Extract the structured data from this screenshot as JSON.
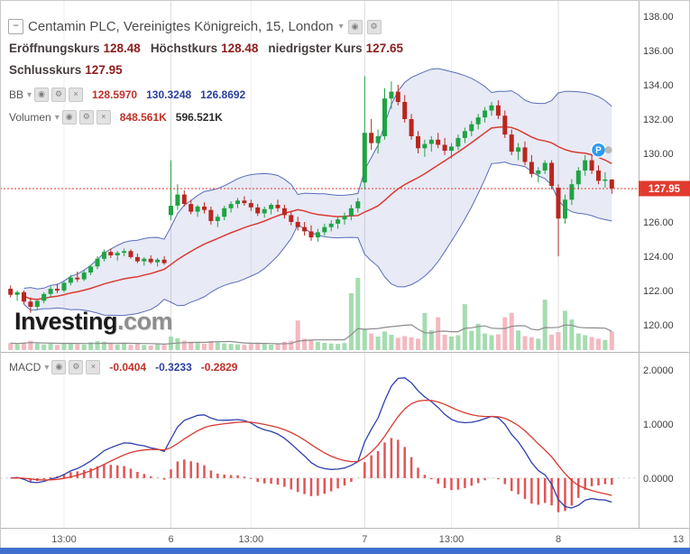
{
  "header": {
    "title": "Centamin PLC, Vereinigtes Königreich, 15, London",
    "open_label": "Eröffnungskurs",
    "open": "128.48",
    "high_label": "Höchstkurs",
    "high": "128.48",
    "low_label": "niedrigster Kurs",
    "low": "127.65",
    "close_label": "Schlusskurs",
    "close": "127.95"
  },
  "indicators_legend": {
    "bb": {
      "label": "BB",
      "v1": "128.5970",
      "v2": "130.3248",
      "v3": "126.8692"
    },
    "volume": {
      "label": "Volumen",
      "v1": "848.561K",
      "v2": "596.521K"
    },
    "macd": {
      "label": "MACD",
      "v1": "-0.0404",
      "v2": "-0.3233",
      "v3": "-0.2829"
    }
  },
  "icons": {
    "collapse": "−",
    "caret": "▾",
    "eye": "◉",
    "gear": "⚙",
    "close": "×"
  },
  "watermark": {
    "brand": "Investing",
    "suffix": ".com"
  },
  "colors": {
    "up": "#1fa343",
    "down": "#b7271e",
    "vol_up": "#a5dcb0",
    "vol_down": "#f3b9c0",
    "vol_ma": "#8c8c8c",
    "band_fill": "rgba(92,106,188,0.14)",
    "band_line": "#3d55ad",
    "basis": "#d93a30",
    "macd_line": "#2d3fb0",
    "signal_line": "#d93a30",
    "hist": "#e05555",
    "price_line": "#e23a2e",
    "tag_bg": "#e23a2e",
    "tag_text": "#ffffff",
    "marker_bg": "#2e9bf0",
    "marker_dot": "#b8b8b8"
  },
  "chart_data": {
    "type": "candlestick",
    "title": "Centamin PLC, Vereinigtes Königreich, 15, London",
    "price_axis": {
      "ticks": [
        138,
        136,
        134,
        132,
        130,
        128,
        126,
        124,
        122,
        120
      ],
      "ylim": [
        118.42,
        138.95
      ]
    },
    "macd_axis": {
      "ticks": [
        2,
        1,
        0
      ],
      "ylim": [
        -0.92,
        2.3
      ]
    },
    "last_price": 127.95,
    "time_ticks": [
      {
        "label": "13:00",
        "i": 8
      },
      {
        "label": "6",
        "i": 24
      },
      {
        "label": "13:00",
        "i": 36
      },
      {
        "label": "7",
        "i": 53
      },
      {
        "label": "13:00",
        "i": 66
      },
      {
        "label": "8",
        "i": 82
      },
      {
        "label": "13",
        "i": 101
      }
    ],
    "day_break_indices": [
      24,
      53,
      82
    ],
    "indicators": {
      "bb": {
        "period": 20,
        "stddev": 2
      },
      "volume_ma": {
        "period": 10
      },
      "macd": {
        "fast": 12,
        "slow": 26,
        "signal": 9
      }
    },
    "markers": [
      {
        "type": "position",
        "label": "P",
        "i": 88,
        "price": 130.2
      },
      {
        "type": "dot",
        "i": 89.5,
        "price": 130.2
      }
    ],
    "candles": [
      [
        122.1,
        122.3,
        121.6,
        121.75
      ],
      [
        121.75,
        122.0,
        121.4,
        121.9
      ],
      [
        121.9,
        122.0,
        121.2,
        121.35
      ],
      [
        121.35,
        121.6,
        120.7,
        121.05
      ],
      [
        121.05,
        121.5,
        120.85,
        121.4
      ],
      [
        121.4,
        121.9,
        121.25,
        121.8
      ],
      [
        121.8,
        122.25,
        121.6,
        122.1
      ],
      [
        122.1,
        122.4,
        121.85,
        122.0
      ],
      [
        122.0,
        122.55,
        121.9,
        122.45
      ],
      [
        122.45,
        122.9,
        122.3,
        122.75
      ],
      [
        122.75,
        123.1,
        122.5,
        122.65
      ],
      [
        122.65,
        123.2,
        122.55,
        123.05
      ],
      [
        123.05,
        123.5,
        122.9,
        123.4
      ],
      [
        123.4,
        124.0,
        123.25,
        123.85
      ],
      [
        123.85,
        124.4,
        123.7,
        124.25
      ],
      [
        124.25,
        124.45,
        123.9,
        124.05
      ],
      [
        124.05,
        124.3,
        123.75,
        124.2
      ],
      [
        124.2,
        124.45,
        124.0,
        124.3
      ],
      [
        124.3,
        124.4,
        123.85,
        123.95
      ],
      [
        123.95,
        124.15,
        123.6,
        123.7
      ],
      [
        123.7,
        123.95,
        123.45,
        123.85
      ],
      [
        123.85,
        124.05,
        123.55,
        123.65
      ],
      [
        123.65,
        123.9,
        123.4,
        123.8
      ],
      [
        123.8,
        124.0,
        123.5,
        123.6
      ],
      [
        126.4,
        129.6,
        126.1,
        126.95
      ],
      [
        126.95,
        128.2,
        126.7,
        127.6
      ],
      [
        127.6,
        127.85,
        126.9,
        127.05
      ],
      [
        127.05,
        127.3,
        126.45,
        126.6
      ],
      [
        126.6,
        127.0,
        126.3,
        126.9
      ],
      [
        126.9,
        127.15,
        126.5,
        126.7
      ],
      [
        126.7,
        126.9,
        125.85,
        126.05
      ],
      [
        126.05,
        126.45,
        125.7,
        126.3
      ],
      [
        126.3,
        126.95,
        126.1,
        126.8
      ],
      [
        126.8,
        127.2,
        126.55,
        127.05
      ],
      [
        127.05,
        127.4,
        126.8,
        127.25
      ],
      [
        127.25,
        127.5,
        126.95,
        127.1
      ],
      [
        127.1,
        127.3,
        126.65,
        126.85
      ],
      [
        126.85,
        127.05,
        126.35,
        126.5
      ],
      [
        126.5,
        126.9,
        126.25,
        126.75
      ],
      [
        126.75,
        127.1,
        126.45,
        127.0
      ],
      [
        127.0,
        127.3,
        126.6,
        126.8
      ],
      [
        126.8,
        127.0,
        126.2,
        126.4
      ],
      [
        126.4,
        126.6,
        125.8,
        126.0
      ],
      [
        126.0,
        126.3,
        125.5,
        125.7
      ],
      [
        125.7,
        126.0,
        125.2,
        125.45
      ],
      [
        125.45,
        125.8,
        124.9,
        125.1
      ],
      [
        125.1,
        125.6,
        124.85,
        125.4
      ],
      [
        125.4,
        125.9,
        125.2,
        125.7
      ],
      [
        125.7,
        126.1,
        125.45,
        125.9
      ],
      [
        125.9,
        126.3,
        125.6,
        126.15
      ],
      [
        126.15,
        126.55,
        125.85,
        126.35
      ],
      [
        126.35,
        127.0,
        126.1,
        126.8
      ],
      [
        126.8,
        127.4,
        126.55,
        127.2
      ],
      [
        128.3,
        134.5,
        127.9,
        131.2
      ],
      [
        131.2,
        132.0,
        130.2,
        130.6
      ],
      [
        130.6,
        131.4,
        130.0,
        131.0
      ],
      [
        131.0,
        133.8,
        130.8,
        133.2
      ],
      [
        133.2,
        134.2,
        132.6,
        133.6
      ],
      [
        133.6,
        134.0,
        132.8,
        133.0
      ],
      [
        133.0,
        133.4,
        131.8,
        132.0
      ],
      [
        132.0,
        132.3,
        130.8,
        131.0
      ],
      [
        131.0,
        131.3,
        130.0,
        130.3
      ],
      [
        130.3,
        130.8,
        129.8,
        130.55
      ],
      [
        130.55,
        131.0,
        130.1,
        130.8
      ],
      [
        130.8,
        131.2,
        130.3,
        130.5
      ],
      [
        130.5,
        130.9,
        129.9,
        130.15
      ],
      [
        130.15,
        130.6,
        129.7,
        130.4
      ],
      [
        130.4,
        131.1,
        130.2,
        130.9
      ],
      [
        130.9,
        131.5,
        130.6,
        131.3
      ],
      [
        131.3,
        131.9,
        131.0,
        131.7
      ],
      [
        131.7,
        132.3,
        131.4,
        132.1
      ],
      [
        132.1,
        132.7,
        131.8,
        132.5
      ],
      [
        132.5,
        133.0,
        132.2,
        132.8
      ],
      [
        132.8,
        133.1,
        132.0,
        132.2
      ],
      [
        132.2,
        132.5,
        130.9,
        131.1
      ],
      [
        131.1,
        131.4,
        129.9,
        130.1
      ],
      [
        130.1,
        130.6,
        129.6,
        130.35
      ],
      [
        130.35,
        130.7,
        129.3,
        129.5
      ],
      [
        129.5,
        129.9,
        128.6,
        128.8
      ],
      [
        128.8,
        129.2,
        128.3,
        129.0
      ],
      [
        129.0,
        129.6,
        128.8,
        129.45
      ],
      [
        129.45,
        129.6,
        127.9,
        128.1
      ],
      [
        128.0,
        128.2,
        124.0,
        126.2
      ],
      [
        126.2,
        127.6,
        125.9,
        127.3
      ],
      [
        127.3,
        128.5,
        127.0,
        128.2
      ],
      [
        128.2,
        129.2,
        127.9,
        129.0
      ],
      [
        129.0,
        129.9,
        128.7,
        129.6
      ],
      [
        129.6,
        130.0,
        128.8,
        129.0
      ],
      [
        129.0,
        129.3,
        128.2,
        128.4
      ],
      [
        128.4,
        128.9,
        128.0,
        128.48
      ],
      [
        128.48,
        128.48,
        127.65,
        127.95
      ]
    ],
    "volumes": [
      320,
      280,
      350,
      420,
      300,
      260,
      310,
      240,
      290,
      330,
      270,
      250,
      360,
      410,
      380,
      300,
      260,
      290,
      240,
      310,
      230,
      210,
      260,
      240,
      620,
      540,
      430,
      380,
      320,
      290,
      410,
      350,
      300,
      280,
      260,
      240,
      300,
      340,
      280,
      250,
      270,
      380,
      430,
      1350,
      520,
      460,
      380,
      330,
      300,
      280,
      320,
      2600,
      3300,
      980,
      760,
      620,
      850,
      700,
      560,
      640,
      580,
      520,
      1700,
      900,
      1500,
      700,
      620,
      680,
      2100,
      880,
      1200,
      760,
      680,
      720,
      1500,
      1700,
      900,
      640,
      580,
      520,
      2300,
      700,
      820,
      1800,
      1400,
      760,
      680,
      600,
      520,
      460,
      849
    ]
  }
}
